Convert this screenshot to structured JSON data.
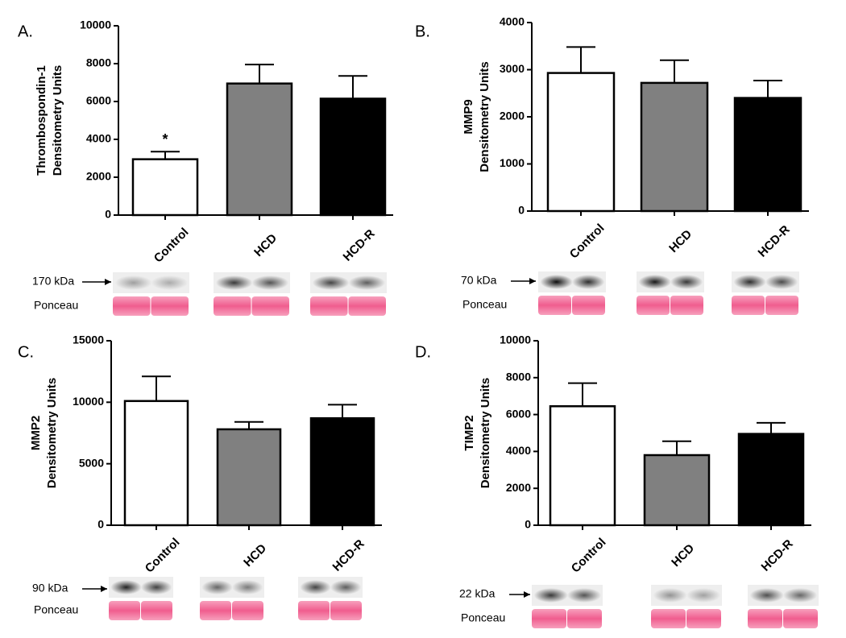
{
  "chart_data": [
    {
      "type": "bar",
      "panel": "A.",
      "ylabel_lines": [
        "Thrombospondin-1",
        "Densitometry Units"
      ],
      "categories": [
        "Control",
        "HCD",
        "HCD-R"
      ],
      "values": [
        2950,
        6950,
        6150
      ],
      "errors": [
        400,
        1000,
        1200
      ],
      "value_annotations": [
        "*",
        null,
        null
      ],
      "colors": [
        "#ffffff",
        "#808080",
        "#000000"
      ],
      "ylim": [
        0,
        10000
      ],
      "yticks": [
        0,
        2000,
        4000,
        6000,
        8000,
        10000
      ],
      "blot_marker": "170 kDa",
      "loading_label": "Ponceau"
    },
    {
      "type": "bar",
      "panel": "B.",
      "ylabel_lines": [
        "MMP9",
        "Densitometry Units"
      ],
      "categories": [
        "Control",
        "HCD",
        "HCD-R"
      ],
      "values": [
        2930,
        2720,
        2400
      ],
      "errors": [
        550,
        480,
        370
      ],
      "colors": [
        "#ffffff",
        "#808080",
        "#000000"
      ],
      "ylim": [
        0,
        4000
      ],
      "yticks": [
        0,
        1000,
        2000,
        3000,
        4000
      ],
      "blot_marker": "70 kDa",
      "loading_label": "Ponceau"
    },
    {
      "type": "bar",
      "panel": "C.",
      "ylabel_lines": [
        "MMP2",
        "Densitometry Units"
      ],
      "categories": [
        "Control",
        "HCD",
        "HCD-R"
      ],
      "values": [
        10100,
        7800,
        8700
      ],
      "errors": [
        2000,
        600,
        1100
      ],
      "colors": [
        "#ffffff",
        "#808080",
        "#000000"
      ],
      "ylim": [
        0,
        15000
      ],
      "yticks": [
        0,
        5000,
        10000,
        15000
      ],
      "blot_marker": "90 kDa",
      "loading_label": "Ponceau"
    },
    {
      "type": "bar",
      "panel": "D.",
      "ylabel_lines": [
        "TIMP2",
        "Densitometry Units"
      ],
      "categories": [
        "Control",
        "HCD",
        "HCD-R"
      ],
      "values": [
        6450,
        3800,
        4950
      ],
      "errors": [
        1250,
        750,
        600
      ],
      "colors": [
        "#ffffff",
        "#808080",
        "#000000"
      ],
      "ylim": [
        0,
        10000
      ],
      "yticks": [
        0,
        2000,
        4000,
        6000,
        8000,
        10000
      ],
      "blot_marker": "22 kDa",
      "loading_label": "Ponceau"
    }
  ]
}
